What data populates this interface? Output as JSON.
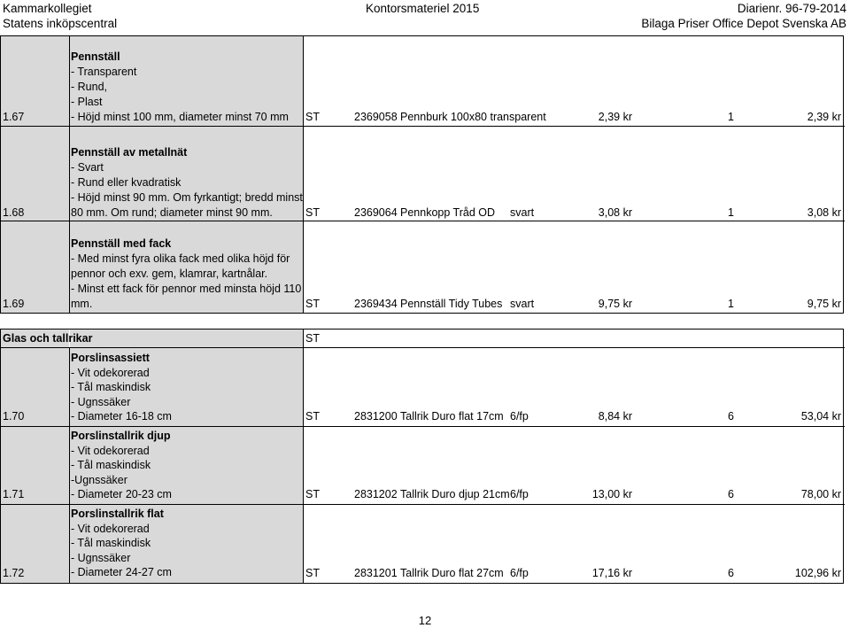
{
  "header": {
    "left1": "Kammarkollegiet",
    "left2": "Statens inköpscentral",
    "center": "Kontorsmateriel 2015",
    "right1": "Diarienr. 96-79-2014",
    "right2": "Bilaga Priser Office Depot Svenska AB"
  },
  "rows1": [
    {
      "num": "1.67",
      "title": "Pennställ",
      "lines": [
        "- Transparent",
        "- Rund,",
        "- Plast",
        "- Höjd minst 100 mm, diameter minst 70 mm"
      ],
      "unit": "ST",
      "artnr": "2369058",
      "name": "Pennburk 100x80 transparent",
      "variant": "",
      "price": "2,39 kr",
      "qty": "1",
      "total": "2,39 kr"
    },
    {
      "num": "1.68",
      "title": "Pennställ av metallnät",
      "lines": [
        "- Svart",
        "- Rund eller kvadratisk",
        "- Höjd minst 90 mm. Om fyrkantigt; bredd minst",
        "80 mm. Om rund; diameter minst 90 mm."
      ],
      "unit": "ST",
      "artnr": "2369064",
      "name": "Pennkopp Tråd OD",
      "variant": "svart",
      "price": "3,08 kr",
      "qty": "1",
      "total": "3,08 kr"
    },
    {
      "num": "1.69",
      "title": "Pennställ med fack",
      "lines": [
        "- Med minst fyra olika fack med olika höjd för",
        "pennor och exv. gem, klamrar, kartnålar.",
        "- Minst ett fack för pennor med minsta höjd 110",
        "mm."
      ],
      "unit": "ST",
      "artnr": "2369434",
      "name": "Pennställ Tidy Tubes",
      "variant": "svart",
      "price": "9,75 kr",
      "qty": "1",
      "total": "9,75 kr"
    }
  ],
  "section2": {
    "title": "Glas och tallrikar",
    "unit": "ST"
  },
  "rows2": [
    {
      "num": "1.70",
      "title": "Porslinsassiett",
      "lines": [
        "- Vit odekorerad",
        "- Tål maskindisk",
        "- Ugnssäker",
        "- Diameter 16-18 cm"
      ],
      "unit": "ST",
      "artnr": "2831200",
      "name": "Tallrik Duro flat 17cm",
      "variant": "6/fp",
      "price": "8,84 kr",
      "qty": "6",
      "total": "53,04 kr"
    },
    {
      "num": "1.71",
      "title": "Porslinstallrik djup",
      "lines": [
        "- Vit odekorerad",
        "- Tål maskindisk",
        "-Ugnssäker",
        "- Diameter 20-23 cm"
      ],
      "unit": "ST",
      "artnr": "2831202",
      "name": "Tallrik Duro djup 21cm",
      "variant": "6/fp",
      "price": "13,00 kr",
      "qty": "6",
      "total": "78,00 kr"
    },
    {
      "num": "1.72",
      "title": "Porslinstallrik flat",
      "lines": [
        "- Vit odekorerad",
        "- Tål maskindisk",
        "- Ugnssäker",
        "- Diameter 24-27 cm"
      ],
      "unit": "ST",
      "artnr": "2831201",
      "name": "Tallrik Duro flat 27cm",
      "variant": "6/fp",
      "price": "17,16 kr",
      "qty": "6",
      "total": "102,96 kr"
    }
  ],
  "page_number": "12"
}
